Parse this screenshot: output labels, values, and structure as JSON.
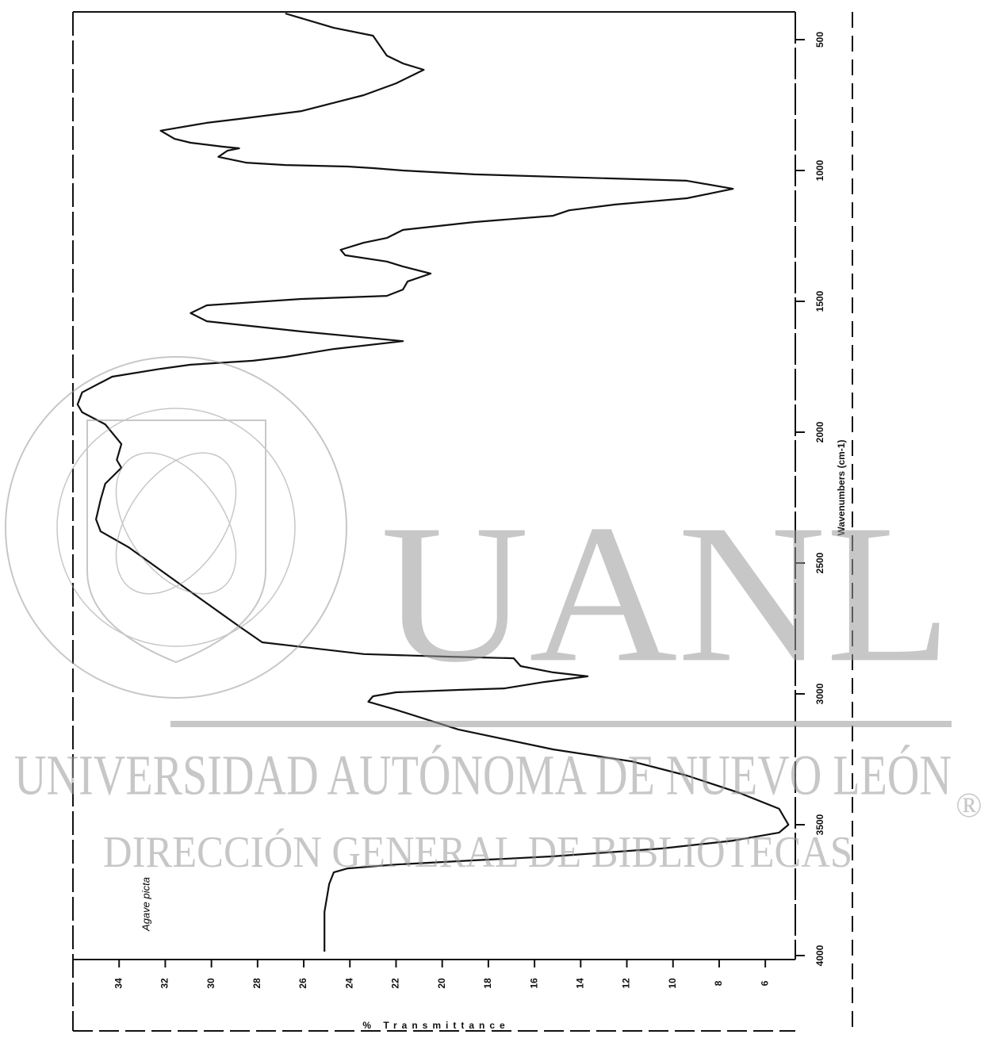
{
  "chart_data": {
    "type": "line",
    "x_label": "Wavenumbers (cm-1)",
    "y_label": "% Transmittance",
    "annotation": "Agave picta",
    "x": [
      400,
      455,
      485,
      561,
      591,
      615,
      667,
      712,
      773,
      803,
      818,
      848,
      879,
      894,
      909,
      915,
      924,
      948,
      970,
      979,
      985,
      991,
      1000,
      1015,
      1039,
      1070,
      1106,
      1130,
      1152,
      1173,
      1197,
      1227,
      1258,
      1276,
      1303,
      1324,
      1348,
      1367,
      1394,
      1424,
      1455,
      1479,
      1491,
      1515,
      1545,
      1576,
      1615,
      1652,
      1682,
      1712,
      1727,
      1742,
      1758,
      1788,
      1848,
      1894,
      1924,
      1970,
      2045,
      2106,
      2136,
      2197,
      2258,
      2333,
      2379,
      2439,
      2591,
      2742,
      2803,
      2848,
      2858,
      2864,
      2894,
      2918,
      2933,
      2955,
      2979,
      2985,
      2994,
      3009,
      3030,
      3061,
      3136,
      3212,
      3258,
      3312,
      3379,
      3439,
      3500,
      3530,
      3561,
      3591,
      3621,
      3636,
      3652,
      3667,
      3682,
      3727,
      3833,
      3985
    ],
    "series": [
      {
        "color": "#111111",
        "values": [
          26.8,
          24.7,
          23.0,
          22.4,
          21.7,
          20.8,
          22.0,
          23.4,
          26.1,
          28.8,
          30.2,
          32.2,
          31.6,
          30.9,
          29.5,
          28.8,
          29.3,
          29.7,
          28.5,
          26.8,
          24.1,
          23.0,
          21.7,
          18.6,
          9.4,
          7.4,
          9.4,
          12.5,
          14.5,
          15.2,
          18.6,
          21.7,
          22.4,
          23.4,
          24.4,
          24.2,
          22.4,
          21.7,
          20.5,
          21.5,
          21.7,
          22.4,
          26.1,
          30.2,
          30.9,
          30.2,
          26.1,
          21.7,
          24.7,
          26.8,
          28.2,
          30.9,
          32.2,
          34.3,
          35.6,
          35.8,
          35.6,
          34.6,
          33.9,
          34.1,
          33.9,
          34.6,
          34.8,
          35.0,
          34.8,
          33.6,
          31.2,
          28.8,
          27.8,
          23.4,
          19.7,
          16.9,
          16.6,
          15.2,
          13.7,
          15.6,
          17.3,
          19.3,
          22.0,
          23.0,
          23.2,
          22.0,
          19.3,
          15.2,
          11.8,
          9.4,
          7.1,
          5.4,
          5.0,
          5.4,
          7.4,
          10.5,
          15.2,
          18.6,
          22.0,
          24.1,
          24.7,
          24.9,
          25.1,
          25.1
        ]
      }
    ],
    "xlim": [
      4000,
      400
    ],
    "xticks": [
      500,
      1000,
      1500,
      2000,
      2500,
      3000,
      3500,
      4000
    ],
    "ylim": [
      36,
      4.7
    ],
    "yticks": [
      34,
      32,
      30,
      28,
      26,
      24,
      22,
      20,
      18,
      16,
      14,
      12,
      10,
      8,
      6
    ]
  },
  "watermark": {
    "logo": "UANL",
    "university": "UNIVERSIDAD AUTÓNOMA DE NUEVO LEÓN",
    "library": "DIRECCIÓN GENERAL DE BIBLIOTECAS",
    "mark": "®"
  }
}
